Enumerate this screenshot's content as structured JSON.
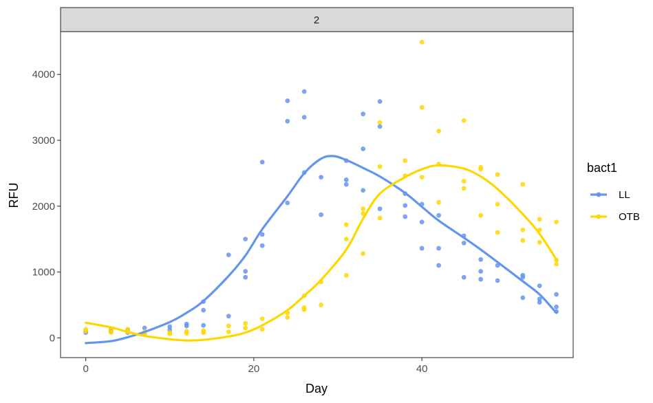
{
  "chart_data": {
    "type": "scatter",
    "facet_label": "2",
    "xlabel": "Day",
    "ylabel": "RFU",
    "xlim": [
      -3,
      58
    ],
    "ylim": [
      -300,
      4650
    ],
    "x_ticks": [
      0,
      20,
      40
    ],
    "y_ticks": [
      0,
      1000,
      2000,
      3000,
      4000
    ],
    "grid": false,
    "legend": {
      "title": "bact1",
      "position": "right"
    },
    "series": [
      {
        "name": "LL",
        "color": "#6495ED",
        "points": [
          [
            0,
            80
          ],
          [
            0,
            100
          ],
          [
            3,
            130
          ],
          [
            3,
            100
          ],
          [
            5,
            80
          ],
          [
            5,
            120
          ],
          [
            7,
            60
          ],
          [
            7,
            150
          ],
          [
            10,
            120
          ],
          [
            10,
            170
          ],
          [
            12,
            180
          ],
          [
            12,
            210
          ],
          [
            14,
            190
          ],
          [
            14,
            420
          ],
          [
            14,
            550
          ],
          [
            17,
            330
          ],
          [
            17,
            1260
          ],
          [
            19,
            920
          ],
          [
            19,
            1010
          ],
          [
            19,
            1500
          ],
          [
            21,
            1400
          ],
          [
            21,
            1570
          ],
          [
            21,
            2670
          ],
          [
            24,
            2050
          ],
          [
            24,
            3290
          ],
          [
            24,
            3600
          ],
          [
            26,
            2510
          ],
          [
            26,
            3350
          ],
          [
            26,
            3740
          ],
          [
            28,
            1870
          ],
          [
            28,
            2440
          ],
          [
            31,
            2330
          ],
          [
            31,
            2400
          ],
          [
            31,
            2690
          ],
          [
            33,
            2240
          ],
          [
            33,
            2870
          ],
          [
            33,
            3400
          ],
          [
            35,
            1960
          ],
          [
            35,
            3210
          ],
          [
            35,
            3590
          ],
          [
            38,
            1840
          ],
          [
            38,
            2010
          ],
          [
            38,
            2190
          ],
          [
            40,
            1360
          ],
          [
            40,
            1760
          ],
          [
            40,
            2030
          ],
          [
            42,
            1100
          ],
          [
            42,
            1360
          ],
          [
            42,
            1860
          ],
          [
            45,
            920
          ],
          [
            45,
            1440
          ],
          [
            45,
            1550
          ],
          [
            47,
            890
          ],
          [
            47,
            1010
          ],
          [
            47,
            1190
          ],
          [
            49,
            870
          ],
          [
            49,
            1100
          ],
          [
            52,
            610
          ],
          [
            52,
            920
          ],
          [
            52,
            950
          ],
          [
            54,
            540
          ],
          [
            54,
            590
          ],
          [
            54,
            790
          ],
          [
            56,
            400
          ],
          [
            56,
            470
          ],
          [
            56,
            660
          ]
        ],
        "trend": [
          [
            0,
            -80
          ],
          [
            3,
            -50
          ],
          [
            5,
            10
          ],
          [
            7,
            90
          ],
          [
            10,
            240
          ],
          [
            12,
            380
          ],
          [
            14,
            560
          ],
          [
            17,
            940
          ],
          [
            19,
            1250
          ],
          [
            21,
            1650
          ],
          [
            24,
            2150
          ],
          [
            26,
            2500
          ],
          [
            28,
            2720
          ],
          [
            29.5,
            2760
          ],
          [
            31,
            2700
          ],
          [
            33,
            2580
          ],
          [
            35,
            2450
          ],
          [
            38,
            2200
          ],
          [
            40,
            1990
          ],
          [
            42,
            1780
          ],
          [
            45,
            1520
          ],
          [
            47,
            1340
          ],
          [
            49,
            1150
          ],
          [
            52,
            860
          ],
          [
            54,
            660
          ],
          [
            56,
            380
          ]
        ]
      },
      {
        "name": "OTB",
        "color": "#FFD700",
        "points": [
          [
            0,
            130
          ],
          [
            0,
            100
          ],
          [
            3,
            120
          ],
          [
            3,
            80
          ],
          [
            5,
            130
          ],
          [
            5,
            90
          ],
          [
            7,
            90
          ],
          [
            7,
            60
          ],
          [
            10,
            80
          ],
          [
            10,
            60
          ],
          [
            12,
            70
          ],
          [
            12,
            100
          ],
          [
            14,
            80
          ],
          [
            14,
            110
          ],
          [
            17,
            180
          ],
          [
            17,
            90
          ],
          [
            19,
            220
          ],
          [
            19,
            150
          ],
          [
            21,
            290
          ],
          [
            21,
            130
          ],
          [
            24,
            380
          ],
          [
            24,
            310
          ],
          [
            26,
            430
          ],
          [
            26,
            460
          ],
          [
            26,
            640
          ],
          [
            28,
            500
          ],
          [
            28,
            850
          ],
          [
            31,
            950
          ],
          [
            31,
            1500
          ],
          [
            31,
            1720
          ],
          [
            33,
            1280
          ],
          [
            33,
            1890
          ],
          [
            33,
            1960
          ],
          [
            35,
            1820
          ],
          [
            35,
            2600
          ],
          [
            35,
            3270
          ],
          [
            38,
            2460
          ],
          [
            38,
            2690
          ],
          [
            40,
            2440
          ],
          [
            40,
            3500
          ],
          [
            40,
            4490
          ],
          [
            42,
            2060
          ],
          [
            42,
            2640
          ],
          [
            42,
            3140
          ],
          [
            45,
            2270
          ],
          [
            45,
            2380
          ],
          [
            45,
            3300
          ],
          [
            47,
            1860
          ],
          [
            47,
            2560
          ],
          [
            47,
            2590
          ],
          [
            49,
            1600
          ],
          [
            49,
            2030
          ],
          [
            49,
            2480
          ],
          [
            52,
            1480
          ],
          [
            52,
            1640
          ],
          [
            52,
            2330
          ],
          [
            54,
            1450
          ],
          [
            54,
            1640
          ],
          [
            54,
            1800
          ],
          [
            56,
            1120
          ],
          [
            56,
            1180
          ],
          [
            56,
            1760
          ]
        ],
        "trend": [
          [
            0,
            230
          ],
          [
            3,
            160
          ],
          [
            5,
            90
          ],
          [
            7,
            30
          ],
          [
            10,
            -20
          ],
          [
            12,
            -40
          ],
          [
            14,
            -30
          ],
          [
            17,
            20
          ],
          [
            19,
            80
          ],
          [
            21,
            190
          ],
          [
            24,
            420
          ],
          [
            26,
            640
          ],
          [
            28,
            880
          ],
          [
            31,
            1340
          ],
          [
            33,
            1810
          ],
          [
            35,
            2190
          ],
          [
            38,
            2440
          ],
          [
            40,
            2560
          ],
          [
            42,
            2620
          ],
          [
            45,
            2570
          ],
          [
            47,
            2450
          ],
          [
            49,
            2260
          ],
          [
            52,
            1880
          ],
          [
            54,
            1580
          ],
          [
            56,
            1190
          ]
        ]
      }
    ]
  }
}
